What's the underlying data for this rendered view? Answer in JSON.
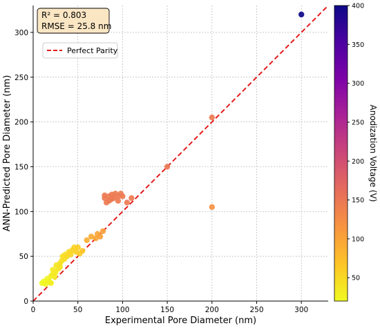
{
  "chart_data": {
    "type": "scatter",
    "title": "",
    "xlabel": "Experimental Pore Diameter (nm)",
    "ylabel": "ANN-Predicted Pore Diameter (nm)",
    "xlim": [
      0,
      330
    ],
    "ylim": [
      0,
      330
    ],
    "xticks": [
      "0",
      "50",
      "100",
      "150",
      "200",
      "250",
      "300"
    ],
    "yticks": [
      "0",
      "50",
      "100",
      "150",
      "200",
      "250",
      "300"
    ],
    "grid": true,
    "stats": {
      "r2": "R² = 0.803",
      "rmse": "RMSE = 25.8 nm"
    },
    "legend": {
      "placement": "upper-left",
      "entries": [
        {
          "label": "Perfect Parity",
          "style": "red dashed line"
        }
      ]
    },
    "parity_line": {
      "color": "#e41a1c"
    },
    "colorbar": {
      "label": "Anodization Voltage (V)",
      "range": [
        20,
        400
      ],
      "ticks": [
        "50",
        "100",
        "150",
        "200",
        "250",
        "300",
        "350",
        "400"
      ],
      "colormap": "plasma"
    },
    "series": [
      {
        "points": [
          {
            "x": 10,
            "y": 20,
            "v": 20
          },
          {
            "x": 12,
            "y": 22,
            "v": 22
          },
          {
            "x": 14,
            "y": 19,
            "v": 24
          },
          {
            "x": 16,
            "y": 25,
            "v": 25
          },
          {
            "x": 18,
            "y": 22,
            "v": 28
          },
          {
            "x": 20,
            "y": 28,
            "v": 30
          },
          {
            "x": 20,
            "y": 20,
            "v": 26
          },
          {
            "x": 22,
            "y": 30,
            "v": 32
          },
          {
            "x": 22,
            "y": 35,
            "v": 34
          },
          {
            "x": 24,
            "y": 27,
            "v": 33
          },
          {
            "x": 25,
            "y": 32,
            "v": 35
          },
          {
            "x": 26,
            "y": 40,
            "v": 38
          },
          {
            "x": 28,
            "y": 36,
            "v": 38
          },
          {
            "x": 30,
            "y": 42,
            "v": 40
          },
          {
            "x": 30,
            "y": 38,
            "v": 40
          },
          {
            "x": 32,
            "y": 45,
            "v": 42
          },
          {
            "x": 33,
            "y": 50,
            "v": 44
          },
          {
            "x": 35,
            "y": 47,
            "v": 45
          },
          {
            "x": 36,
            "y": 52,
            "v": 46
          },
          {
            "x": 38,
            "y": 50,
            "v": 48
          },
          {
            "x": 40,
            "y": 55,
            "v": 50
          },
          {
            "x": 42,
            "y": 52,
            "v": 52
          },
          {
            "x": 44,
            "y": 57,
            "v": 55
          },
          {
            "x": 46,
            "y": 60,
            "v": 56
          },
          {
            "x": 48,
            "y": 55,
            "v": 58
          },
          {
            "x": 50,
            "y": 60,
            "v": 60
          },
          {
            "x": 52,
            "y": 53,
            "v": 62
          },
          {
            "x": 55,
            "y": 56,
            "v": 65
          },
          {
            "x": 60,
            "y": 68,
            "v": 90
          },
          {
            "x": 65,
            "y": 72,
            "v": 95
          },
          {
            "x": 70,
            "y": 70,
            "v": 98
          },
          {
            "x": 72,
            "y": 75,
            "v": 100
          },
          {
            "x": 75,
            "y": 72,
            "v": 105
          },
          {
            "x": 78,
            "y": 78,
            "v": 105
          },
          {
            "x": 80,
            "y": 115,
            "v": 145
          },
          {
            "x": 80,
            "y": 118,
            "v": 145
          },
          {
            "x": 82,
            "y": 110,
            "v": 145
          },
          {
            "x": 85,
            "y": 112,
            "v": 145
          },
          {
            "x": 85,
            "y": 117,
            "v": 145
          },
          {
            "x": 88,
            "y": 114,
            "v": 145
          },
          {
            "x": 88,
            "y": 119,
            "v": 145
          },
          {
            "x": 90,
            "y": 115,
            "v": 145
          },
          {
            "x": 92,
            "y": 120,
            "v": 145
          },
          {
            "x": 95,
            "y": 117,
            "v": 145
          },
          {
            "x": 95,
            "y": 112,
            "v": 145
          },
          {
            "x": 98,
            "y": 120,
            "v": 145
          },
          {
            "x": 100,
            "y": 117,
            "v": 145
          },
          {
            "x": 105,
            "y": 110,
            "v": 145
          },
          {
            "x": 110,
            "y": 115,
            "v": 145
          },
          {
            "x": 150,
            "y": 150,
            "v": 150
          },
          {
            "x": 200,
            "y": 205,
            "v": 145
          },
          {
            "x": 200,
            "y": 105,
            "v": 120
          },
          {
            "x": 300,
            "y": 320,
            "v": 400
          }
        ]
      }
    ]
  }
}
